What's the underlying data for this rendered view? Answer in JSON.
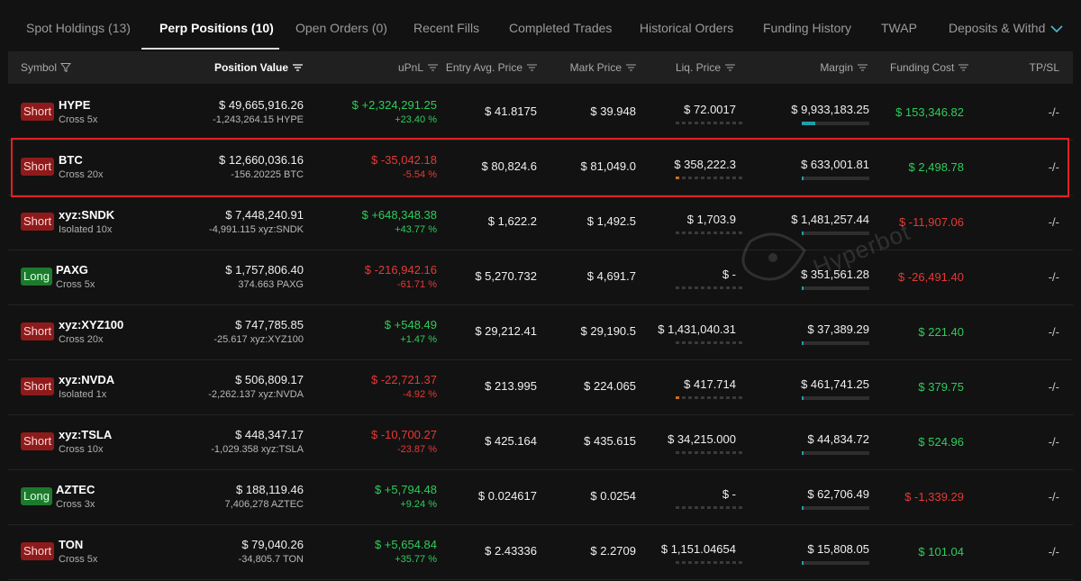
{
  "tabs": [
    {
      "label": "Spot Holdings (13)"
    },
    {
      "label": "Perp Positions (10)"
    },
    {
      "label": "Open Orders (0)"
    },
    {
      "label": "Recent Fills"
    },
    {
      "label": "Completed Trades"
    },
    {
      "label": "Historical Orders"
    },
    {
      "label": "Funding History"
    },
    {
      "label": "TWAP"
    },
    {
      "label": "Deposits & Withd"
    }
  ],
  "active_tab": "Perp Positions (10)",
  "columns": {
    "symbol": "Symbol",
    "position_value": "Position Value",
    "upnl": "uPnL",
    "entry": "Entry Avg. Price",
    "mark": "Mark Price",
    "liq": "Liq. Price",
    "margin": "Margin",
    "funding": "Funding Cost",
    "tpsl": "TP/SL"
  },
  "watermark": "Hyperbot",
  "colors": {
    "accent_green": "#2ecc5a",
    "accent_red": "#e53935",
    "short_badge": "#8e1b1b",
    "long_badge": "#1b7a2c",
    "highlight": "#e02020",
    "margin_bar": "#1fa0a8"
  },
  "positions": [
    {
      "side": "Short",
      "symbol": "HYPE",
      "leverage": "Cross 5x",
      "value": "$ 49,665,916.26",
      "size": "-1,243,264.15 HYPE",
      "upnl": "$ +2,324,291.25",
      "upnl_pct": "+23.40 %",
      "upnl_dir": "up",
      "entry": "$ 41.8175",
      "mark": "$ 39.948",
      "liq": "$ 72.0017",
      "margin": "$ 9,933,183.25",
      "margin_ratio": 0.2,
      "funding": "$ 153,346.82",
      "funding_dir": "up",
      "tpsl": "-/-"
    },
    {
      "side": "Short",
      "symbol": "BTC",
      "leverage": "Cross 20x",
      "value": "$ 12,660,036.16",
      "size": "-156.20225 BTC",
      "upnl": "$ -35,042.18",
      "upnl_pct": "-5.54 %",
      "upnl_dir": "down",
      "entry": "$ 80,824.6",
      "mark": "$ 81,049.0",
      "liq": "$ 358,222.3",
      "margin": "$ 633,001.81",
      "margin_ratio": 0.02,
      "funding": "$ 2,498.78",
      "funding_dir": "up",
      "tpsl": "-/-",
      "highlighted": true
    },
    {
      "side": "Short",
      "symbol": "xyz:SNDK",
      "leverage": "Isolated 10x",
      "value": "$ 7,448,240.91",
      "size": "-4,991.115 xyz:SNDK",
      "upnl": "$ +648,348.38",
      "upnl_pct": "+43.77 %",
      "upnl_dir": "up",
      "entry": "$ 1,622.2",
      "mark": "$ 1,492.5",
      "liq": "$ 1,703.9",
      "margin": "$ 1,481,257.44",
      "margin_ratio": 0.02,
      "funding": "$ -11,907.06",
      "funding_dir": "down",
      "tpsl": "-/-"
    },
    {
      "side": "Long",
      "symbol": "PAXG",
      "leverage": "Cross 5x",
      "value": "$ 1,757,806.40",
      "size": "374.663 PAXG",
      "upnl": "$ -216,942.16",
      "upnl_pct": "-61.71 %",
      "upnl_dir": "down",
      "entry": "$ 5,270.732",
      "mark": "$ 4,691.7",
      "liq": "$ -",
      "margin": "$ 351,561.28",
      "margin_ratio": 0.02,
      "funding": "$ -26,491.40",
      "funding_dir": "down",
      "tpsl": "-/-"
    },
    {
      "side": "Short",
      "symbol": "xyz:XYZ100",
      "leverage": "Cross 20x",
      "value": "$ 747,785.85",
      "size": "-25.617 xyz:XYZ100",
      "upnl": "$ +548.49",
      "upnl_pct": "+1.47 %",
      "upnl_dir": "up",
      "entry": "$ 29,212.41",
      "mark": "$ 29,190.5",
      "liq": "$ 1,431,040.31",
      "margin": "$ 37,389.29",
      "margin_ratio": 0.02,
      "funding": "$ 221.40",
      "funding_dir": "up",
      "tpsl": "-/-"
    },
    {
      "side": "Short",
      "symbol": "xyz:NVDA",
      "leverage": "Isolated 1x",
      "value": "$ 506,809.17",
      "size": "-2,262.137 xyz:NVDA",
      "upnl": "$ -22,721.37",
      "upnl_pct": "-4.92 %",
      "upnl_dir": "down",
      "entry": "$ 213.995",
      "mark": "$ 224.065",
      "liq": "$ 417.714",
      "margin": "$ 461,741.25",
      "margin_ratio": 0.02,
      "funding": "$ 379.75",
      "funding_dir": "up",
      "tpsl": "-/-"
    },
    {
      "side": "Short",
      "symbol": "xyz:TSLA",
      "leverage": "Cross 10x",
      "value": "$ 448,347.17",
      "size": "-1,029.358 xyz:TSLA",
      "upnl": "$ -10,700.27",
      "upnl_pct": "-23.87 %",
      "upnl_dir": "down",
      "entry": "$ 425.164",
      "mark": "$ 435.615",
      "liq": "$ 34,215.000",
      "margin": "$ 44,834.72",
      "margin_ratio": 0.02,
      "funding": "$ 524.96",
      "funding_dir": "up",
      "tpsl": "-/-"
    },
    {
      "side": "Long",
      "symbol": "AZTEC",
      "leverage": "Cross 3x",
      "value": "$ 188,119.46",
      "size": "7,406,278 AZTEC",
      "upnl": "$ +5,794.48",
      "upnl_pct": "+9.24 %",
      "upnl_dir": "up",
      "entry": "$ 0.024617",
      "mark": "$ 0.0254",
      "liq": "$ -",
      "margin": "$ 62,706.49",
      "margin_ratio": 0.02,
      "funding": "$ -1,339.29",
      "funding_dir": "down",
      "tpsl": "-/-"
    },
    {
      "side": "Short",
      "symbol": "TON",
      "leverage": "Cross 5x",
      "value": "$ 79,040.26",
      "size": "-34,805.7 TON",
      "upnl": "$ +5,654.84",
      "upnl_pct": "+35.77 %",
      "upnl_dir": "up",
      "entry": "$ 2.43336",
      "mark": "$ 2.2709",
      "liq": "$ 1,151.04654",
      "margin": "$ 15,808.05",
      "margin_ratio": 0.02,
      "funding": "$ 101.04",
      "funding_dir": "up",
      "tpsl": "-/-"
    }
  ],
  "liq_risk_dots": [
    0,
    1,
    0,
    0,
    0,
    1,
    0,
    0,
    0
  ]
}
